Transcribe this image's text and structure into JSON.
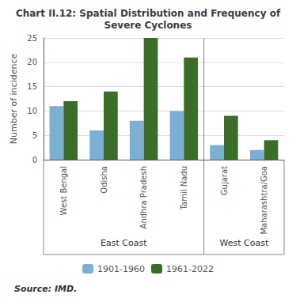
{
  "chart_data": {
    "type": "bar",
    "title": "Chart II.12: Spatial Distribution and Frequency of\nSevere Cyclones",
    "y_label": "Number of incidence",
    "categories": [
      "West Bengal",
      "Odisha",
      "Andhra Pradesh",
      "Tamil Nadu",
      "Gujarat",
      "Maharashtra/Goa"
    ],
    "series": [
      {
        "name": "1901-1960",
        "color": "#7bafd4",
        "values": [
          11,
          6,
          8,
          10,
          3,
          2
        ]
      },
      {
        "name": "1961-2022",
        "color": "#3a6e28",
        "values": [
          12,
          14,
          25,
          21,
          9,
          4
        ]
      }
    ],
    "ylim": [
      0,
      25
    ],
    "yticks": [
      0,
      5,
      10,
      15,
      20,
      25
    ],
    "annotations": [
      "East Coast",
      "West Coast",
      "Source: IMD."
    ],
    "grid": true
  }
}
